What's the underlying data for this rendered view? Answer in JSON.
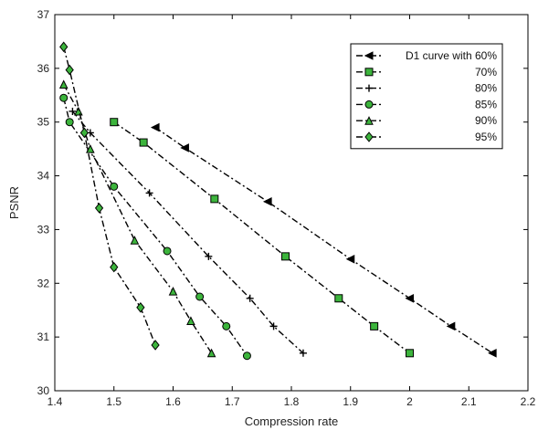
{
  "chart_data": {
    "type": "line",
    "title": "",
    "xlabel": "Compression rate",
    "ylabel": "PSNR",
    "xlim": [
      1.4,
      2.2
    ],
    "ylim": [
      30,
      37
    ],
    "xticks": [
      "1.4",
      "1.5",
      "1.6",
      "1.7",
      "1.8",
      "1.9",
      "2",
      "2.1",
      "2.2"
    ],
    "yticks": [
      "30",
      "31",
      "32",
      "33",
      "34",
      "35",
      "36",
      "37"
    ],
    "grid": false,
    "legend_position": "top-right",
    "series": [
      {
        "name": "D1 curve with 60%",
        "marker": "triangle-left",
        "color": "#000000",
        "marker_fill": "#000000",
        "x": [
          1.57,
          1.62,
          1.76,
          1.9,
          2.0,
          2.07,
          2.14
        ],
        "y": [
          34.9,
          34.52,
          33.52,
          32.45,
          31.72,
          31.2,
          30.7
        ]
      },
      {
        "name": "70%",
        "marker": "square",
        "color": "#000000",
        "marker_fill": "#3cb43c",
        "x": [
          1.5,
          1.55,
          1.67,
          1.79,
          1.88,
          1.94,
          2.0
        ],
        "y": [
          35.0,
          34.62,
          33.57,
          32.5,
          31.72,
          31.2,
          30.7
        ]
      },
      {
        "name": "80%",
        "marker": "plus",
        "color": "#000000",
        "marker_fill": "#000000",
        "x": [
          1.43,
          1.46,
          1.56,
          1.66,
          1.73,
          1.77,
          1.82
        ],
        "y": [
          35.2,
          34.8,
          33.68,
          32.5,
          31.72,
          31.2,
          30.7
        ]
      },
      {
        "name": "85%",
        "marker": "circle",
        "color": "#000000",
        "marker_fill": "#3cb43c",
        "x": [
          1.415,
          1.425,
          1.5,
          1.59,
          1.645,
          1.69,
          1.725
        ],
        "y": [
          35.45,
          35.0,
          33.8,
          32.6,
          31.75,
          31.2,
          30.65
        ]
      },
      {
        "name": "90%",
        "marker": "triangle-up",
        "color": "#000000",
        "marker_fill": "#3cb43c",
        "x": [
          1.415,
          1.44,
          1.46,
          1.535,
          1.6,
          1.63,
          1.665
        ],
        "y": [
          35.7,
          35.2,
          34.5,
          32.8,
          31.85,
          31.3,
          30.7
        ]
      },
      {
        "name": "95%",
        "marker": "diamond",
        "color": "#000000",
        "marker_fill": "#3cb43c",
        "x": [
          1.415,
          1.425,
          1.45,
          1.475,
          1.5,
          1.545,
          1.57
        ],
        "y": [
          36.4,
          35.97,
          34.8,
          33.4,
          32.3,
          31.55,
          30.85
        ]
      }
    ]
  }
}
